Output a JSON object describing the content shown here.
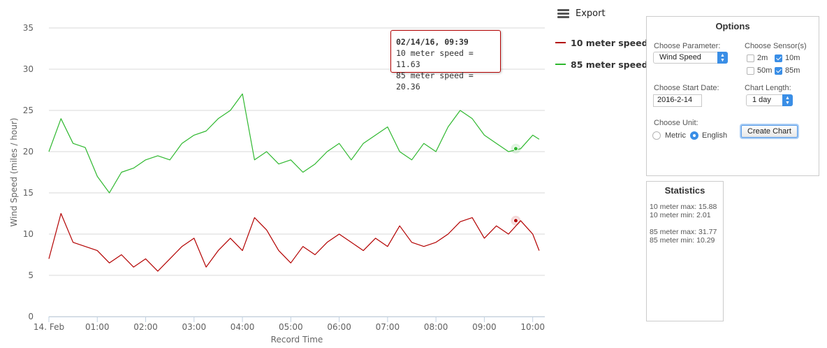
{
  "chart_data": {
    "type": "line",
    "title": "",
    "xlabel": "Record Time",
    "ylabel": "Wind Speed (miles / hour)",
    "ylim": [
      0,
      35
    ],
    "yticks": [
      "0",
      "5",
      "10",
      "15",
      "20",
      "25",
      "30",
      "35"
    ],
    "xlim": [
      "2016-02-14 00:00",
      "2016-02-14 10:15"
    ],
    "xticks": [
      "14. Feb",
      "01:00",
      "02:00",
      "03:00",
      "04:00",
      "05:00",
      "06:00",
      "07:00",
      "08:00",
      "09:00",
      "10:00"
    ],
    "grid": "horizontal",
    "legend_position": "right",
    "series": [
      {
        "name": "10 meter speed",
        "color": "#b30000",
        "x": [
          "00:00",
          "00:15",
          "00:30",
          "00:45",
          "01:00",
          "01:15",
          "01:30",
          "01:45",
          "02:00",
          "02:15",
          "02:30",
          "02:45",
          "03:00",
          "03:15",
          "03:30",
          "03:45",
          "04:00",
          "04:15",
          "04:30",
          "04:45",
          "05:00",
          "05:15",
          "05:30",
          "05:45",
          "06:00",
          "06:15",
          "06:30",
          "06:45",
          "07:00",
          "07:15",
          "07:30",
          "07:45",
          "08:00",
          "08:15",
          "08:30",
          "08:45",
          "09:00",
          "09:15",
          "09:30",
          "09:45",
          "10:00",
          "10:08"
        ],
        "values": [
          7.0,
          12.5,
          9.0,
          8.5,
          8.0,
          6.5,
          7.5,
          6.0,
          7.0,
          5.5,
          7.0,
          8.5,
          9.5,
          6.0,
          8.0,
          9.5,
          8.0,
          12.0,
          10.5,
          8.0,
          6.5,
          8.5,
          7.5,
          9.0,
          10.0,
          9.0,
          8.0,
          9.5,
          8.5,
          11.0,
          9.0,
          8.5,
          9.0,
          10.0,
          11.5,
          12.0,
          9.5,
          11.0,
          10.0,
          11.63,
          10.0,
          8.0
        ]
      },
      {
        "name": "85 meter speed",
        "color": "#2fb82f",
        "x": [
          "00:00",
          "00:15",
          "00:30",
          "00:45",
          "01:00",
          "01:15",
          "01:30",
          "01:45",
          "02:00",
          "02:15",
          "02:30",
          "02:45",
          "03:00",
          "03:15",
          "03:30",
          "03:45",
          "04:00",
          "04:15",
          "04:30",
          "04:45",
          "05:00",
          "05:15",
          "05:30",
          "05:45",
          "06:00",
          "06:15",
          "06:30",
          "06:45",
          "07:00",
          "07:15",
          "07:30",
          "07:45",
          "08:00",
          "08:15",
          "08:30",
          "08:45",
          "09:00",
          "09:15",
          "09:30",
          "09:45",
          "10:00",
          "10:08"
        ],
        "values": [
          20.0,
          24.0,
          21.0,
          20.5,
          17.0,
          15.0,
          17.5,
          18.0,
          19.0,
          19.5,
          19.0,
          21.0,
          22.0,
          22.5,
          24.0,
          25.0,
          27.0,
          19.0,
          20.0,
          18.5,
          19.0,
          17.5,
          18.5,
          20.0,
          21.0,
          19.0,
          21.0,
          22.0,
          23.0,
          20.0,
          19.0,
          21.0,
          20.0,
          23.0,
          25.0,
          24.0,
          22.0,
          21.0,
          20.0,
          20.36,
          22.0,
          21.5
        ]
      }
    ]
  },
  "export": {
    "label": "Export",
    "icon": "hamburger-menu-icon"
  },
  "tooltip": {
    "title": "02/14/16, 09:39",
    "line1": "10 meter speed = 11.63",
    "line2": "85 meter speed = 20.36"
  },
  "options": {
    "title": "Options",
    "parameter_label": "Choose Parameter:",
    "parameter_value": "Wind Speed",
    "sensors_label": "Choose Sensor(s)",
    "sensors": [
      {
        "label": "2m",
        "checked": false
      },
      {
        "label": "10m",
        "checked": true
      },
      {
        "label": "50m",
        "checked": false
      },
      {
        "label": "85m",
        "checked": true
      }
    ],
    "start_date_label": "Choose Start Date:",
    "start_date_value": "2016-2-14",
    "chart_length_label": "Chart Length:",
    "chart_length_value": "1 day",
    "unit_label": "Choose Unit:",
    "units": [
      {
        "label": "Metric",
        "checked": false
      },
      {
        "label": "English",
        "checked": true
      }
    ],
    "create_button": "Create Chart"
  },
  "statistics": {
    "title": "Statistics",
    "lines": [
      "10 meter max: 15.88",
      "10 meter min: 2.01",
      "85 meter max: 31.77",
      "85 meter min: 10.29"
    ]
  }
}
